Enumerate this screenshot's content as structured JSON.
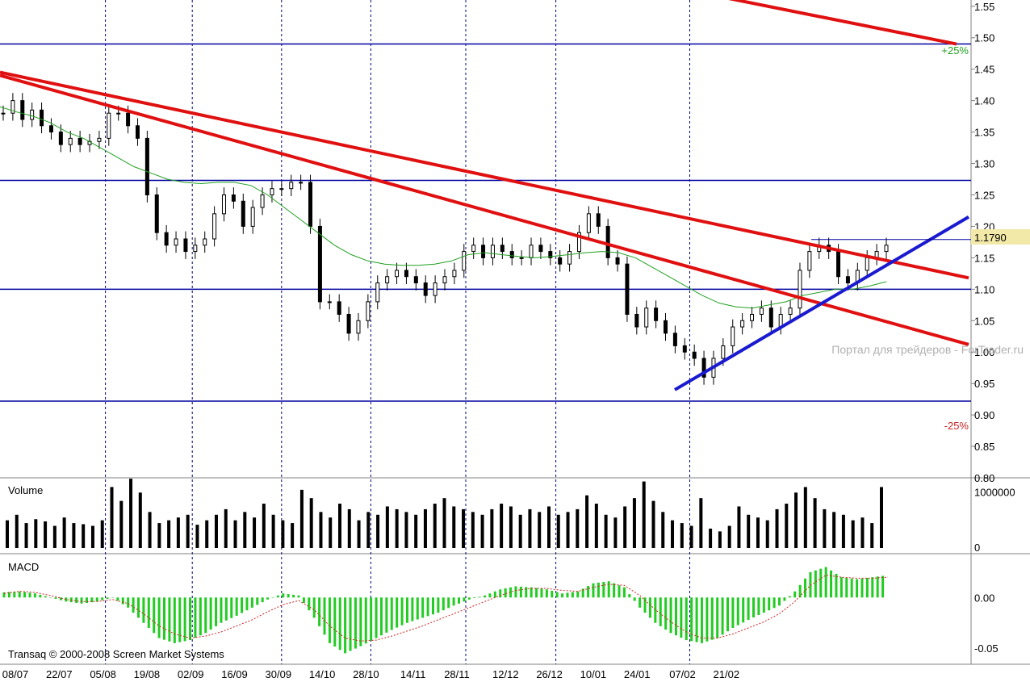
{
  "chart_data": {
    "type": "candlestick",
    "price_panel": {
      "y_ticks": [
        "1.55",
        "1.50",
        "1.45",
        "1.40",
        "1.35",
        "1.30",
        "1.25",
        "1.20",
        "1.15",
        "1.10",
        "1.05",
        "1.00",
        "0.95",
        "0.90",
        "0.85",
        "0.80"
      ],
      "ylim": [
        0.8,
        1.56
      ],
      "last_price_label": "1.1790",
      "last_price": 1.179,
      "horizontal_levels": [
        1.49,
        1.273,
        1.1,
        0.922
      ],
      "plus_label": "+25%",
      "minus_label": "-25%",
      "watermark": "Портал для трейдеров - ForTrader.ru",
      "moving_average": [
        1.39,
        1.382,
        1.375,
        1.365,
        1.35,
        1.34,
        1.325,
        1.31,
        1.295,
        1.285,
        1.275,
        1.27,
        1.268,
        1.27,
        1.27,
        1.265,
        1.25,
        1.23,
        1.21,
        1.19,
        1.17,
        1.155,
        1.145,
        1.14,
        1.138,
        1.138,
        1.14,
        1.145,
        1.155,
        1.158,
        1.155,
        1.152,
        1.15,
        1.152,
        1.155,
        1.158,
        1.16,
        1.158,
        1.15,
        1.135,
        1.12,
        1.105,
        1.09,
        1.078,
        1.072,
        1.07,
        1.075,
        1.08,
        1.09,
        1.095,
        1.1,
        1.1,
        1.105,
        1.112
      ],
      "trendlines_red": [
        {
          "from": [
            "08/07",
            1.445
          ],
          "to": [
            "21/02+2",
            1.118
          ]
        },
        {
          "from": [
            "08/07",
            1.44
          ],
          "to": [
            "21/02+2",
            1.012
          ]
        },
        {
          "from": [
            "26/06",
            1.63
          ],
          "to": [
            "21/02",
            1.49
          ]
        }
      ],
      "trendline_blue": {
        "from": [
          "26/12",
          0.94
        ],
        "to": [
          "21/02+2",
          1.215
        ]
      },
      "candles_close": [
        1.38,
        1.4,
        1.37,
        1.385,
        1.36,
        1.35,
        1.33,
        1.34,
        1.33,
        1.335,
        1.34,
        1.38,
        1.38,
        1.36,
        1.34,
        1.25,
        1.19,
        1.17,
        1.18,
        1.16,
        1.17,
        1.18,
        1.22,
        1.25,
        1.24,
        1.2,
        1.23,
        1.25,
        1.26,
        1.26,
        1.27,
        1.27,
        1.2,
        1.08,
        1.08,
        1.06,
        1.03,
        1.05,
        1.08,
        1.11,
        1.12,
        1.13,
        1.12,
        1.11,
        1.09,
        1.11,
        1.12,
        1.13,
        1.16,
        1.17,
        1.15,
        1.17,
        1.16,
        1.15,
        1.15,
        1.17,
        1.16,
        1.15,
        1.14,
        1.16,
        1.19,
        1.22,
        1.2,
        1.15,
        1.14,
        1.06,
        1.04,
        1.07,
        1.05,
        1.03,
        1.01,
        1.0,
        0.99,
        0.96,
        0.99,
        1.01,
        1.04,
        1.05,
        1.06,
        1.07,
        1.04,
        1.06,
        1.07,
        1.13,
        1.16,
        1.17,
        1.16,
        1.12,
        1.11,
        1.13,
        1.15,
        1.16,
        1.17
      ]
    },
    "volume_panel": {
      "label": "Volume",
      "y_ticks": [
        "1000000",
        "0"
      ],
      "ylim": [
        0,
        1150000
      ],
      "values": [
        500000,
        600000,
        450000,
        520000,
        480000,
        400000,
        550000,
        450000,
        430000,
        400000,
        500000,
        1100000,
        850000,
        1250000,
        1000000,
        650000,
        450000,
        500000,
        550000,
        600000,
        420000,
        500000,
        600000,
        700000,
        500000,
        650000,
        550000,
        800000,
        600000,
        500000,
        450000,
        1050000,
        900000,
        650000,
        550000,
        800000,
        700000,
        500000,
        650000,
        600000,
        750000,
        700000,
        650000,
        600000,
        700000,
        800000,
        900000,
        750000,
        700000,
        650000,
        600000,
        700000,
        800000,
        750000,
        600000,
        700000,
        650000,
        750000,
        600000,
        650000,
        700000,
        950000,
        800000,
        600000,
        550000,
        750000,
        900000,
        1200000,
        850000,
        650000,
        500000,
        450000,
        400000,
        900000,
        350000,
        300000,
        400000,
        750000,
        600000,
        550000,
        500000,
        700000,
        800000,
        1000000,
        1100000,
        900000,
        700000,
        650000,
        600000,
        500000,
        550000,
        450000,
        1100000
      ]
    },
    "macd_panel": {
      "label": "MACD",
      "y_ticks": [
        "0.00",
        "-0.05"
      ],
      "ylim": [
        -0.065,
        0.04
      ],
      "histogram": [
        0.005,
        0.006,
        0.004,
        0.0,
        -0.004,
        -0.006,
        -0.004,
        0.0,
        -0.01,
        -0.025,
        -0.04,
        -0.045,
        -0.042,
        -0.035,
        -0.025,
        -0.018,
        -0.01,
        -0.002,
        0.004,
        0.002,
        -0.02,
        -0.045,
        -0.055,
        -0.048,
        -0.04,
        -0.032,
        -0.025,
        -0.02,
        -0.015,
        -0.008,
        -0.002,
        0.002,
        0.008,
        0.011,
        0.01,
        0.008,
        0.004,
        0.006,
        0.014,
        0.016,
        0.01,
        -0.01,
        -0.025,
        -0.035,
        -0.042,
        -0.045,
        -0.04,
        -0.03,
        -0.022,
        -0.015,
        -0.008,
        0.006,
        0.025,
        0.03,
        0.02,
        0.018,
        0.02,
        0.022
      ],
      "signal": [
        0.004,
        0.006,
        0.005,
        0.002,
        -0.002,
        -0.004,
        -0.004,
        -0.002,
        -0.006,
        -0.016,
        -0.028,
        -0.036,
        -0.04,
        -0.038,
        -0.034,
        -0.028,
        -0.022,
        -0.014,
        -0.007,
        -0.003,
        -0.012,
        -0.028,
        -0.04,
        -0.043,
        -0.042,
        -0.038,
        -0.033,
        -0.028,
        -0.022,
        -0.016,
        -0.01,
        -0.004,
        0.002,
        0.007,
        0.009,
        0.009,
        0.007,
        0.006,
        0.01,
        0.013,
        0.012,
        0.002,
        -0.012,
        -0.024,
        -0.034,
        -0.04,
        -0.04,
        -0.036,
        -0.03,
        -0.024,
        -0.016,
        -0.004,
        0.012,
        0.022,
        0.02,
        0.019,
        0.019,
        0.02
      ]
    },
    "x_ticks": [
      "08/07",
      "22/07",
      "05/08",
      "19/08",
      "02/09",
      "16/09",
      "30/09",
      "14/10",
      "28/10",
      "14/11",
      "28/11",
      "12/12",
      "26/12",
      "10/01",
      "24/01",
      "07/02",
      "21/02"
    ],
    "vertical_markers": [
      "05/08",
      "02/09",
      "30/09",
      "28/10",
      "28/11",
      "26/12",
      "07/02"
    ],
    "copyright": "Transaq © 2000-2008 Screen Market Systems"
  },
  "colors": {
    "grid_blue": "#0000a0",
    "trend_red": "#e01010",
    "trend_blue": "#1a1ad0",
    "ma_green": "#20a020",
    "macd_green": "#22cc22",
    "signal_red": "#cc2222",
    "price_label_bg": "#f2e8a8"
  }
}
